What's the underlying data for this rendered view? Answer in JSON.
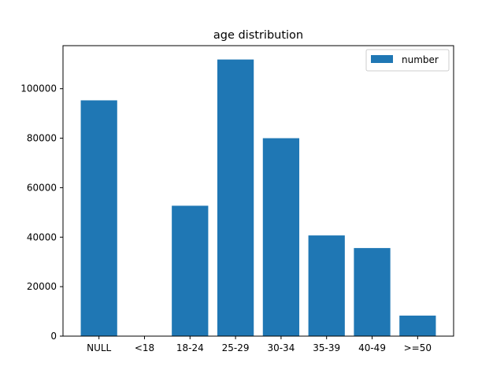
{
  "chart_data": {
    "type": "bar",
    "title": "age distribution",
    "xlabel": "",
    "ylabel": "",
    "categories": [
      "NULL",
      "<18",
      "18-24",
      "25-29",
      "30-34",
      "35-39",
      "40-49",
      ">=50"
    ],
    "series": [
      {
        "name": "number",
        "values": [
          95300,
          0,
          52700,
          111800,
          80000,
          40700,
          35600,
          8300
        ],
        "color": "#1f77b4"
      }
    ],
    "ylim": [
      0,
      117400
    ],
    "yticks": [
      0,
      20000,
      40000,
      60000,
      80000,
      100000
    ],
    "grid": false,
    "legend_placement": "top-right"
  }
}
